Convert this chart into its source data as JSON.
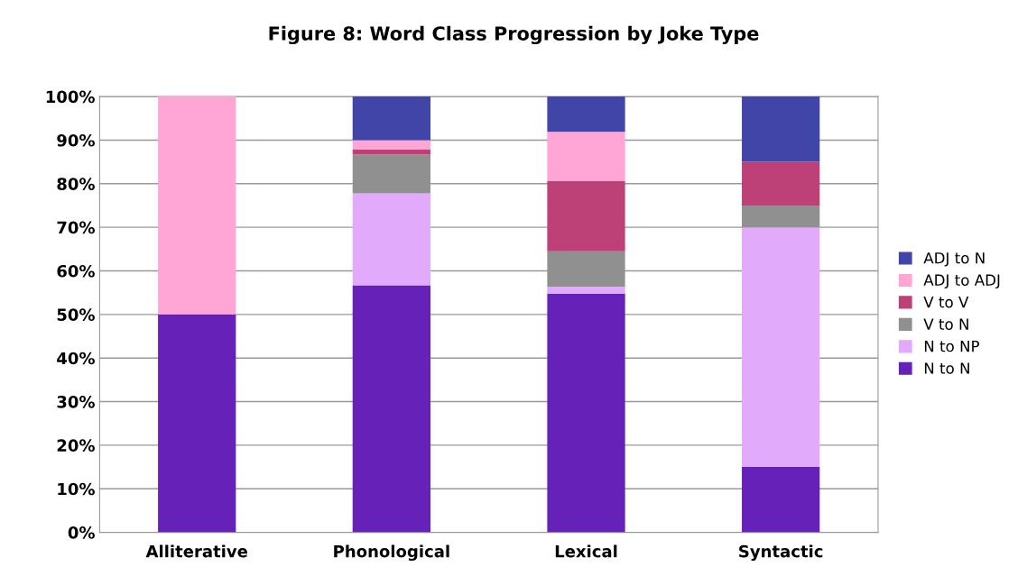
{
  "chart_data": {
    "type": "bar",
    "title": "Figure 8: Word Class Progression by Joke Type",
    "categories": [
      "Alliterative",
      "Phonological",
      "Lexical",
      "Syntactic"
    ],
    "stacked": true,
    "series": [
      {
        "name": "N to N",
        "color": "#6622b8",
        "values": [
          50,
          56.7,
          54.8,
          15
        ]
      },
      {
        "name": "N to NP",
        "color": "#e1aafb",
        "values": [
          0,
          21.1,
          1.6,
          55
        ]
      },
      {
        "name": "V to N",
        "color": "#909090",
        "values": [
          0,
          8.9,
          8.1,
          5
        ]
      },
      {
        "name": "V to V",
        "color": "#bd4076",
        "values": [
          0,
          1.1,
          16.1,
          10
        ]
      },
      {
        "name": "ADJ to ADJ",
        "color": "#ffa6d6",
        "values": [
          50,
          2.2,
          11.3,
          0
        ]
      },
      {
        "name": "ADJ to N",
        "color": "#4245a8",
        "values": [
          0,
          10,
          8.1,
          15
        ]
      }
    ],
    "ylim": [
      0,
      100
    ],
    "yticks": [
      {
        "value": 0,
        "label": "0%"
      },
      {
        "value": 10,
        "label": "10%"
      },
      {
        "value": 20,
        "label": "20%"
      },
      {
        "value": 30,
        "label": "30%"
      },
      {
        "value": 40,
        "label": "40%"
      },
      {
        "value": 50,
        "label": "50%"
      },
      {
        "value": 60,
        "label": "60%"
      },
      {
        "value": 70,
        "label": "70%"
      },
      {
        "value": 80,
        "label": "80%"
      },
      {
        "value": 90,
        "label": "90%"
      },
      {
        "value": 100,
        "label": "100%"
      }
    ],
    "grid": "y",
    "legend": "right"
  }
}
